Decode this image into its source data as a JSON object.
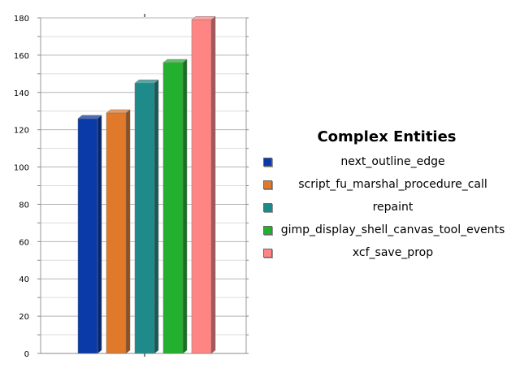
{
  "chart_data": {
    "type": "bar",
    "title": "",
    "xlabel": "",
    "ylabel": "",
    "ylim": [
      0,
      180
    ],
    "ytick_step": 20,
    "yticks": [
      "0",
      "20",
      "40",
      "60",
      "80",
      "100",
      "120",
      "140",
      "160",
      "180"
    ],
    "grid": true,
    "legend_position": "right",
    "series": [
      {
        "name": "next_outline_edge",
        "value": 126,
        "color": "#0a3aa8"
      },
      {
        "name": "script_fu_marshal_procedure_call",
        "value": 129,
        "color": "#e07a2a"
      },
      {
        "name": "repaint",
        "value": 145,
        "color": "#1f8a8a"
      },
      {
        "name": "gimp_display_shell_canvas_tool_events",
        "value": 156,
        "color": "#22b02e"
      },
      {
        "name": "xcf_save_prop",
        "value": 179,
        "color": "#ff8585"
      }
    ]
  },
  "legend": {
    "title": "Complex Entities"
  }
}
